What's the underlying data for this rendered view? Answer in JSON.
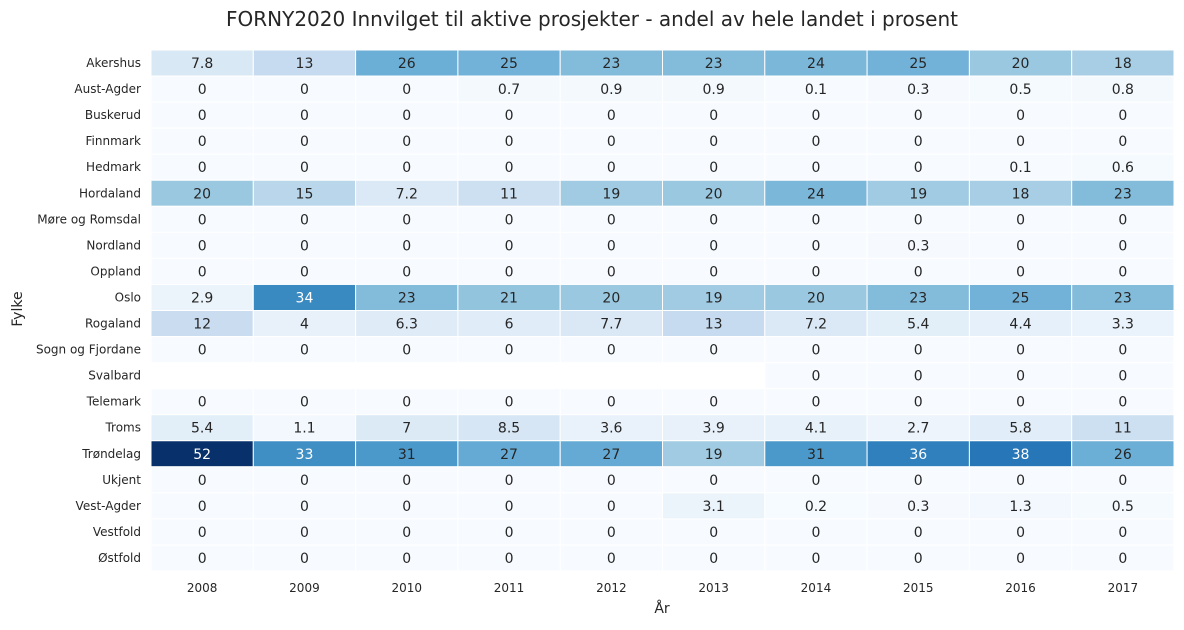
{
  "chart_data": {
    "type": "heatmap",
    "title": "FORNY2020 Innvilget til aktive prosjekter - andel av hele landet i prosent",
    "xlabel": "År",
    "ylabel": "Fylke",
    "colormap": "Blues",
    "vmin": 0,
    "vmax": 52,
    "grid": false,
    "legend": "none",
    "x": [
      "2008",
      "2009",
      "2010",
      "2011",
      "2012",
      "2013",
      "2014",
      "2015",
      "2016",
      "2017"
    ],
    "y": [
      "Akershus",
      "Aust-Agder",
      "Buskerud",
      "Finnmark",
      "Hedmark",
      "Hordaland",
      "Møre og Romsdal",
      "Nordland",
      "Oppland",
      "Oslo",
      "Rogaland",
      "Sogn og Fjordane",
      "Svalbard",
      "Telemark",
      "Troms",
      "Trøndelag",
      "Ukjent",
      "Vest-Agder",
      "Vestfold",
      "Østfold"
    ],
    "values": [
      [
        7.8,
        13,
        26,
        25,
        23,
        23,
        24,
        25,
        20,
        18
      ],
      [
        0,
        0,
        0,
        0.7,
        0.9,
        0.9,
        0.1,
        0.3,
        0.5,
        0.8
      ],
      [
        0,
        0,
        0,
        0,
        0,
        0,
        0,
        0,
        0,
        0
      ],
      [
        0,
        0,
        0,
        0,
        0,
        0,
        0,
        0,
        0,
        0
      ],
      [
        0,
        0,
        0,
        0,
        0,
        0,
        0,
        0,
        0.1,
        0.6
      ],
      [
        20,
        15,
        7.2,
        11,
        19,
        20,
        24,
        19,
        18,
        23
      ],
      [
        0,
        0,
        0,
        0,
        0,
        0,
        0,
        0,
        0,
        0
      ],
      [
        0,
        0,
        0,
        0,
        0,
        0,
        0,
        0.3,
        0,
        0
      ],
      [
        0,
        0,
        0,
        0,
        0,
        0,
        0,
        0,
        0,
        0
      ],
      [
        2.9,
        34,
        23,
        21,
        20,
        19,
        20,
        23,
        25,
        23
      ],
      [
        12,
        4,
        6.3,
        6,
        7.7,
        13,
        7.2,
        5.4,
        4.4,
        3.3
      ],
      [
        0,
        0,
        0,
        0,
        0,
        0,
        0,
        0,
        0,
        0
      ],
      [
        null,
        null,
        null,
        null,
        null,
        null,
        0,
        0,
        0,
        0
      ],
      [
        0,
        0,
        0,
        0,
        0,
        0,
        0,
        0,
        0,
        0
      ],
      [
        5.4,
        1.1,
        7,
        8.5,
        3.6,
        3.9,
        4.1,
        2.7,
        5.8,
        11
      ],
      [
        52,
        33,
        31,
        27,
        27,
        19,
        31,
        36,
        38,
        26
      ],
      [
        0,
        0,
        0,
        0,
        0,
        0,
        0,
        0,
        0,
        0
      ],
      [
        0,
        0,
        0,
        0,
        0,
        3.1,
        0.2,
        0.3,
        1.3,
        0.5
      ],
      [
        0,
        0,
        0,
        0,
        0,
        0,
        0,
        0,
        0,
        0
      ],
      [
        0,
        0,
        0,
        0,
        0,
        0,
        0,
        0,
        0,
        0
      ]
    ]
  }
}
